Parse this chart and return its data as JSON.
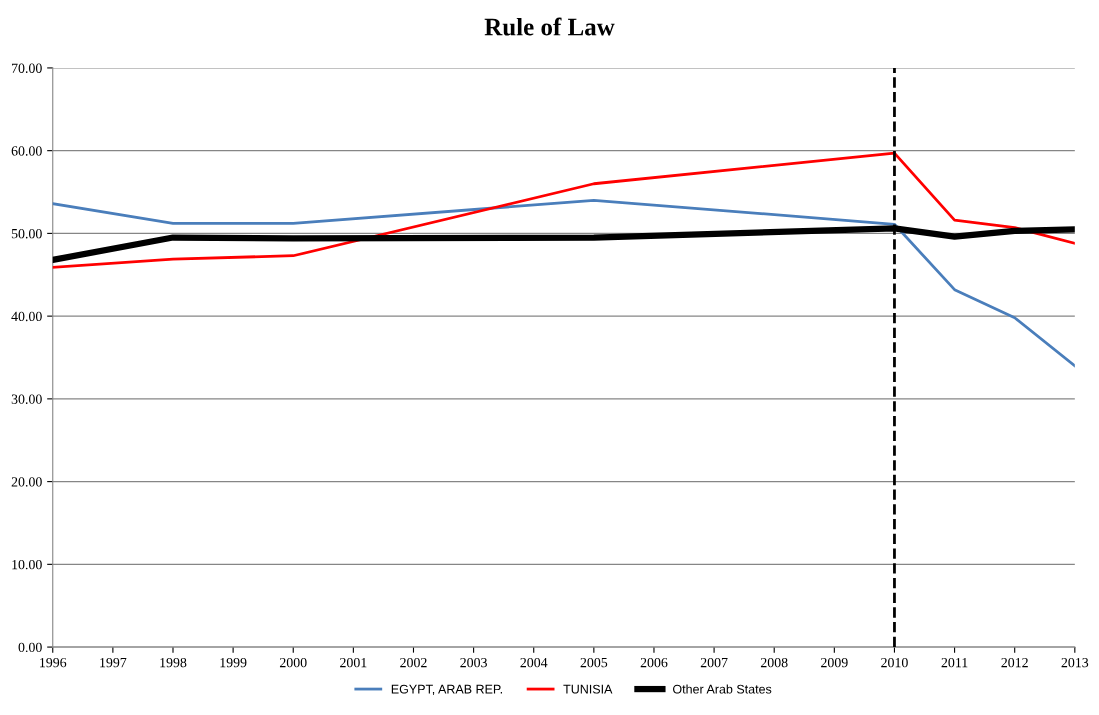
{
  "chart_data": {
    "type": "line",
    "title": "Rule of Law",
    "xlim": [
      1996,
      2013
    ],
    "xticks": [
      1996,
      1997,
      1998,
      1999,
      2000,
      2001,
      2002,
      2003,
      2004,
      2005,
      2006,
      2007,
      2008,
      2009,
      2010,
      2011,
      2012,
      2013
    ],
    "ylim": [
      0,
      70
    ],
    "yticks": [
      {
        "value": 0,
        "label": "0.00"
      },
      {
        "value": 10,
        "label": "10.00"
      },
      {
        "value": 20,
        "label": "20.00"
      },
      {
        "value": 30,
        "label": "30.00"
      },
      {
        "value": 40,
        "label": "40.00"
      },
      {
        "value": 50,
        "label": "50.00"
      },
      {
        "value": 60,
        "label": "60.00"
      },
      {
        "value": 70,
        "label": "70.00"
      }
    ],
    "grid": "y",
    "legend": "bottom",
    "marker": "none",
    "line_style": "solid",
    "x": [
      1996,
      1998,
      2000,
      2005,
      2010,
      2011,
      2012,
      2013
    ],
    "series": [
      {
        "name": "EGYPT, ARAB REP.",
        "color": "#4a7ebb",
        "values": [
          53.6,
          51.2,
          51.2,
          54.0,
          51.1,
          43.2,
          39.8,
          34.0
        ]
      },
      {
        "name": "TUNISIA",
        "color": "#ff0000",
        "values": [
          45.9,
          46.9,
          47.3,
          56.0,
          59.7,
          51.6,
          50.7,
          48.8
        ]
      },
      {
        "name": "Other Arab States",
        "color": "#000000",
        "values": [
          46.8,
          49.5,
          49.4,
          49.5,
          50.6,
          49.6,
          50.3,
          50.5
        ]
      }
    ],
    "ref_lines": [
      {
        "axis": "x",
        "value": 2010,
        "color": "#000000",
        "line_style": "dashed"
      }
    ]
  }
}
